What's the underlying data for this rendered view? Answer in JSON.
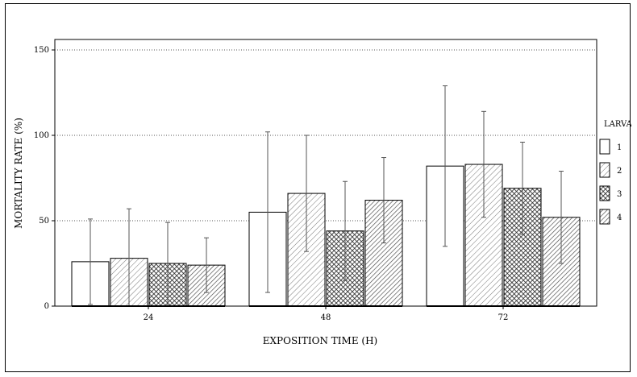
{
  "chart_data": {
    "type": "bar",
    "title": "",
    "xlabel": "EXPOSITION TIME (H)",
    "ylabel": "MORTALITY RATE (%)",
    "ylim": [
      0,
      150
    ],
    "yticks": [
      "0",
      "50",
      "100",
      "150"
    ],
    "grid": "horizontal dotted",
    "legend_title": "LARVAL",
    "legend_position": "right",
    "categories": [
      "24",
      "48",
      "72"
    ],
    "series": [
      {
        "name": "1",
        "pattern": "blank",
        "values": [
          26,
          55,
          82
        ],
        "error": [
          25,
          47,
          47
        ]
      },
      {
        "name": "2",
        "pattern": "light-diagonal",
        "values": [
          28,
          66,
          83
        ],
        "error": [
          29,
          34,
          31
        ]
      },
      {
        "name": "3",
        "pattern": "crosshatch",
        "values": [
          25,
          44,
          69
        ],
        "error": [
          24,
          29,
          27
        ]
      },
      {
        "name": "4",
        "pattern": "dense-diagonal",
        "values": [
          24,
          62,
          52
        ],
        "error": [
          16,
          25,
          27
        ]
      }
    ]
  }
}
